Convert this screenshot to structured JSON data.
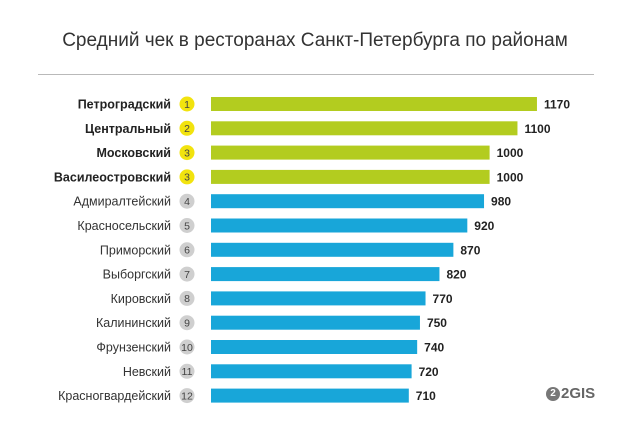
{
  "title": "Средний чек в ресторанах Санкт-Петербурга по районам",
  "logo": {
    "text": "2GIS"
  },
  "colors": {
    "top": "#b3cc1f",
    "rest": "#18a6d9",
    "rank_top": "#f2e30e",
    "rank_rest": "#cfcfcf"
  },
  "chart_data": {
    "type": "bar",
    "orientation": "horizontal",
    "title": "Средний чек в ресторанах Санкт-Петербурга по районам",
    "categories": [
      "Петроградский",
      "Центральный",
      "Московский",
      "Василеостровский",
      "Адмиралтейский",
      "Красносельский",
      "Приморский",
      "Выборгский",
      "Кировский",
      "Калининский",
      "Фрунзенский",
      "Невский",
      "Красногвардейский"
    ],
    "ranks": [
      1,
      2,
      3,
      3,
      4,
      5,
      6,
      7,
      8,
      9,
      10,
      11,
      12
    ],
    "values": [
      1170,
      1100,
      1000,
      1000,
      980,
      920,
      870,
      820,
      770,
      750,
      740,
      720,
      710
    ],
    "highlight_top": 4,
    "grid": false
  }
}
